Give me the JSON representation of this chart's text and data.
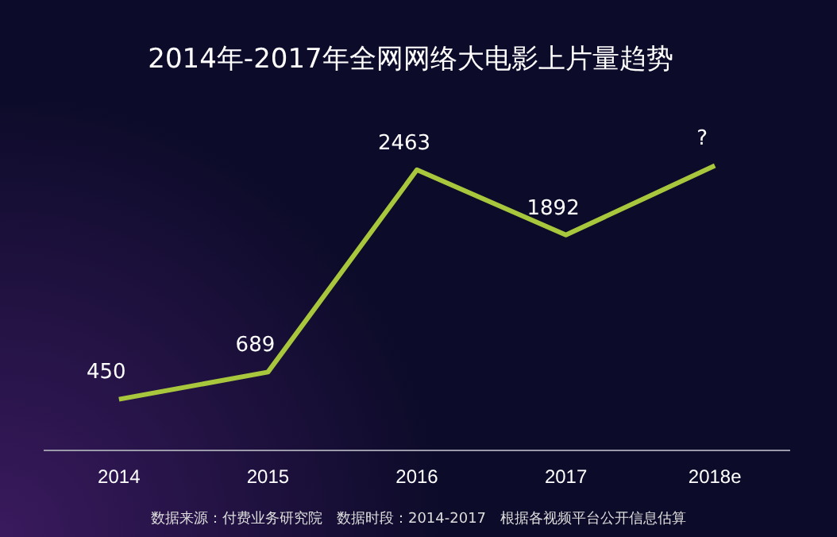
{
  "chart_data": {
    "type": "line",
    "title": "2014年-2017年全网网络大电影上片量趋势",
    "categories": [
      "2014",
      "2015",
      "2016",
      "2017",
      "2018e"
    ],
    "values": [
      450,
      689,
      2463,
      1892,
      2500
    ],
    "value_labels": [
      "450",
      "689",
      "2463",
      "1892",
      "?"
    ],
    "color": "#a9c73c",
    "tick_labels": "x",
    "marker": "none",
    "line_style": "solid",
    "annotations": [
      "数据来源：付费业务研究院　数据时段：2014-2017　根据各视频平台公开信息估算"
    ]
  }
}
